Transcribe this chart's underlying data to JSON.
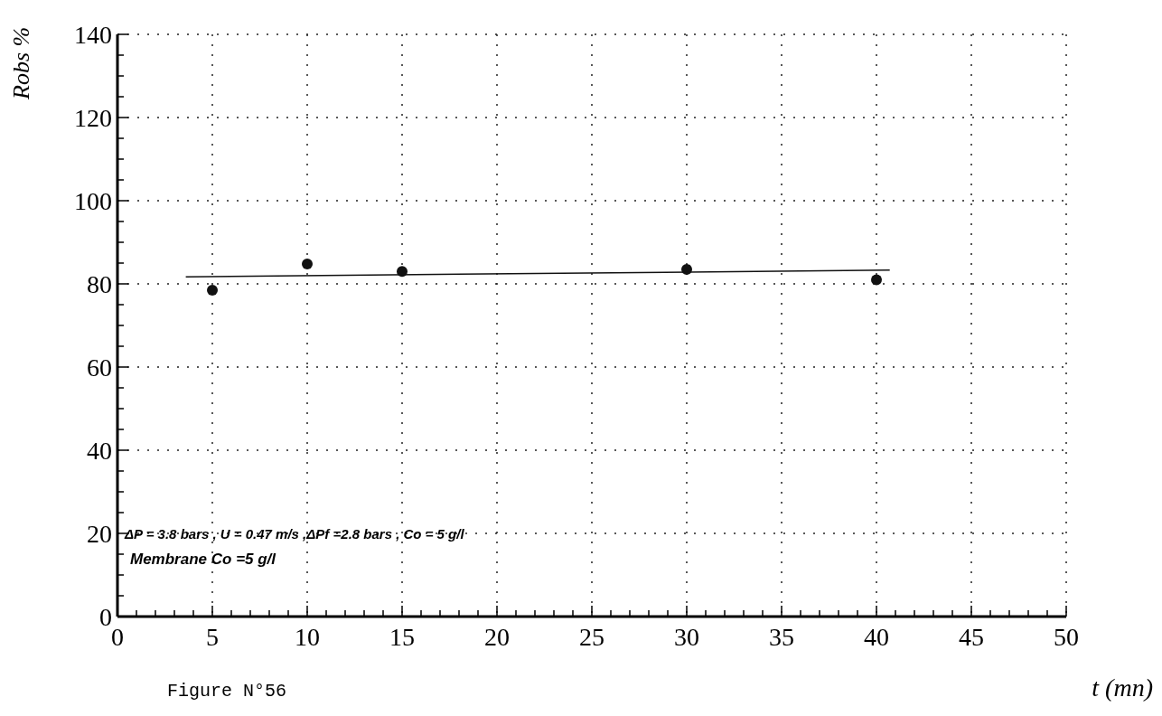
{
  "chart_data": {
    "type": "scatter",
    "xlabel": "t (mn)",
    "ylabel": "Robs %",
    "xlim": [
      0,
      50
    ],
    "xticks": [
      0,
      5,
      10,
      15,
      20,
      25,
      30,
      35,
      40,
      45,
      50
    ],
    "ylim": [
      0,
      140
    ],
    "yticks": [
      0,
      20,
      40,
      60,
      80,
      100,
      120,
      140
    ],
    "grid": true,
    "marker": "circle",
    "series": [
      {
        "type": "scatter",
        "color": "#111111",
        "x": [
          5,
          10,
          15,
          30,
          40
        ],
        "values": [
          78.5,
          84.8,
          83,
          83.5,
          81
        ]
      },
      {
        "type": "line",
        "color": "#111111",
        "x": [
          3.6,
          40.7
        ],
        "values": [
          81.7,
          83.3
        ],
        "marker": "none",
        "line_style": "solid"
      }
    ],
    "annotations": [
      "ΔP = 3.8 bars  , U = 0.47 m/s ,ΔPf =2.8 bars , Co = 5 g/l",
      "Membrane  Co =5 g/l",
      "Figure N°56"
    ]
  }
}
